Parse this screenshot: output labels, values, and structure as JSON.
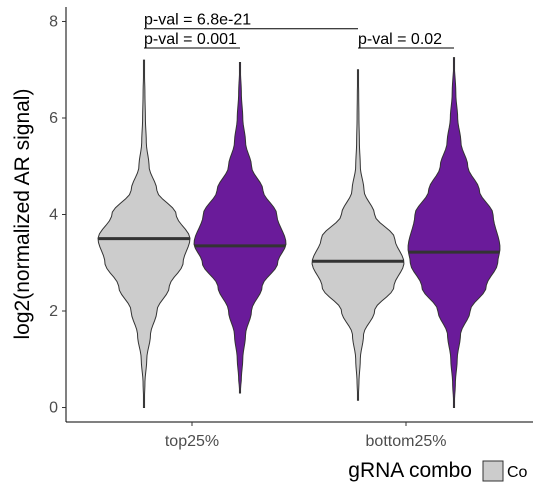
{
  "chart_data": {
    "type": "violin",
    "categories": [
      "top25%",
      "bottom25%"
    ],
    "ylabel": "log2(normalized AR signal)",
    "xlabel": "",
    "ylim": [
      -0.3,
      8.3
    ],
    "yticks": [
      "0",
      "2",
      "4",
      "6",
      "8"
    ],
    "grid": false,
    "legend": {
      "title": "gRNA combo",
      "placement": "bottom-right",
      "items": [
        {
          "label": "Co",
          "color": "#cccccc"
        }
      ]
    },
    "series": [
      {
        "color": "#cccccc",
        "violins": [
          {
            "category": "top25%",
            "median": 3.5,
            "min": 0.0,
            "max": 7.2,
            "profile": [
              [
                0.0,
                0.0
              ],
              [
                0.5,
                0.02
              ],
              [
                1.0,
                0.06
              ],
              [
                1.5,
                0.14
              ],
              [
                2.0,
                0.28
              ],
              [
                2.5,
                0.55
              ],
              [
                3.0,
                0.85
              ],
              [
                3.5,
                1.0
              ],
              [
                4.0,
                0.7
              ],
              [
                4.5,
                0.28
              ],
              [
                5.0,
                0.11
              ],
              [
                5.5,
                0.05
              ],
              [
                6.0,
                0.03
              ],
              [
                6.5,
                0.02
              ],
              [
                7.2,
                0.0
              ]
            ]
          },
          {
            "category": "bottom25%",
            "median": 3.03,
            "min": 0.15,
            "max": 7.0,
            "profile": [
              [
                0.15,
                0.0
              ],
              [
                0.5,
                0.02
              ],
              [
                1.0,
                0.05
              ],
              [
                1.5,
                0.12
              ],
              [
                2.0,
                0.36
              ],
              [
                2.5,
                0.78
              ],
              [
                3.0,
                1.0
              ],
              [
                3.5,
                0.8
              ],
              [
                4.0,
                0.36
              ],
              [
                4.5,
                0.13
              ],
              [
                5.0,
                0.05
              ],
              [
                5.5,
                0.03
              ],
              [
                6.0,
                0.02
              ],
              [
                6.5,
                0.015
              ],
              [
                7.0,
                0.0
              ]
            ]
          }
        ]
      },
      {
        "color": "#6a1b9a",
        "violins": [
          {
            "category": "top25%",
            "median": 3.35,
            "min": 0.3,
            "max": 7.15,
            "profile": [
              [
                0.3,
                0.0
              ],
              [
                0.6,
                0.03
              ],
              [
                1.0,
                0.06
              ],
              [
                1.5,
                0.12
              ],
              [
                2.0,
                0.25
              ],
              [
                2.5,
                0.48
              ],
              [
                3.0,
                0.82
              ],
              [
                3.4,
                1.0
              ],
              [
                4.0,
                0.8
              ],
              [
                4.5,
                0.5
              ],
              [
                5.0,
                0.25
              ],
              [
                5.5,
                0.12
              ],
              [
                6.0,
                0.06
              ],
              [
                6.5,
                0.03
              ],
              [
                7.15,
                0.0
              ]
            ]
          },
          {
            "category": "bottom25%",
            "median": 3.22,
            "min": 0.0,
            "max": 7.25,
            "profile": [
              [
                0.0,
                0.0
              ],
              [
                0.5,
                0.03
              ],
              [
                1.0,
                0.07
              ],
              [
                1.5,
                0.14
              ],
              [
                2.0,
                0.35
              ],
              [
                2.5,
                0.7
              ],
              [
                3.0,
                0.95
              ],
              [
                3.3,
                1.0
              ],
              [
                4.0,
                0.85
              ],
              [
                4.5,
                0.55
              ],
              [
                5.0,
                0.3
              ],
              [
                5.5,
                0.15
              ],
              [
                6.0,
                0.08
              ],
              [
                6.5,
                0.04
              ],
              [
                7.25,
                0.0
              ]
            ]
          }
        ]
      }
    ],
    "comparisons": [
      {
        "label": "p-val = 6.8e-21",
        "y": 7.85,
        "from": "top25%-1",
        "to": "bottom25%-1"
      },
      {
        "label": "p-val = 0.001",
        "y": 7.45,
        "from": "top25%-1",
        "to": "top25%-2"
      },
      {
        "label": "p-val = 0.02",
        "y": 7.45,
        "from": "bottom25%-1",
        "to": "bottom25%-2"
      }
    ]
  }
}
